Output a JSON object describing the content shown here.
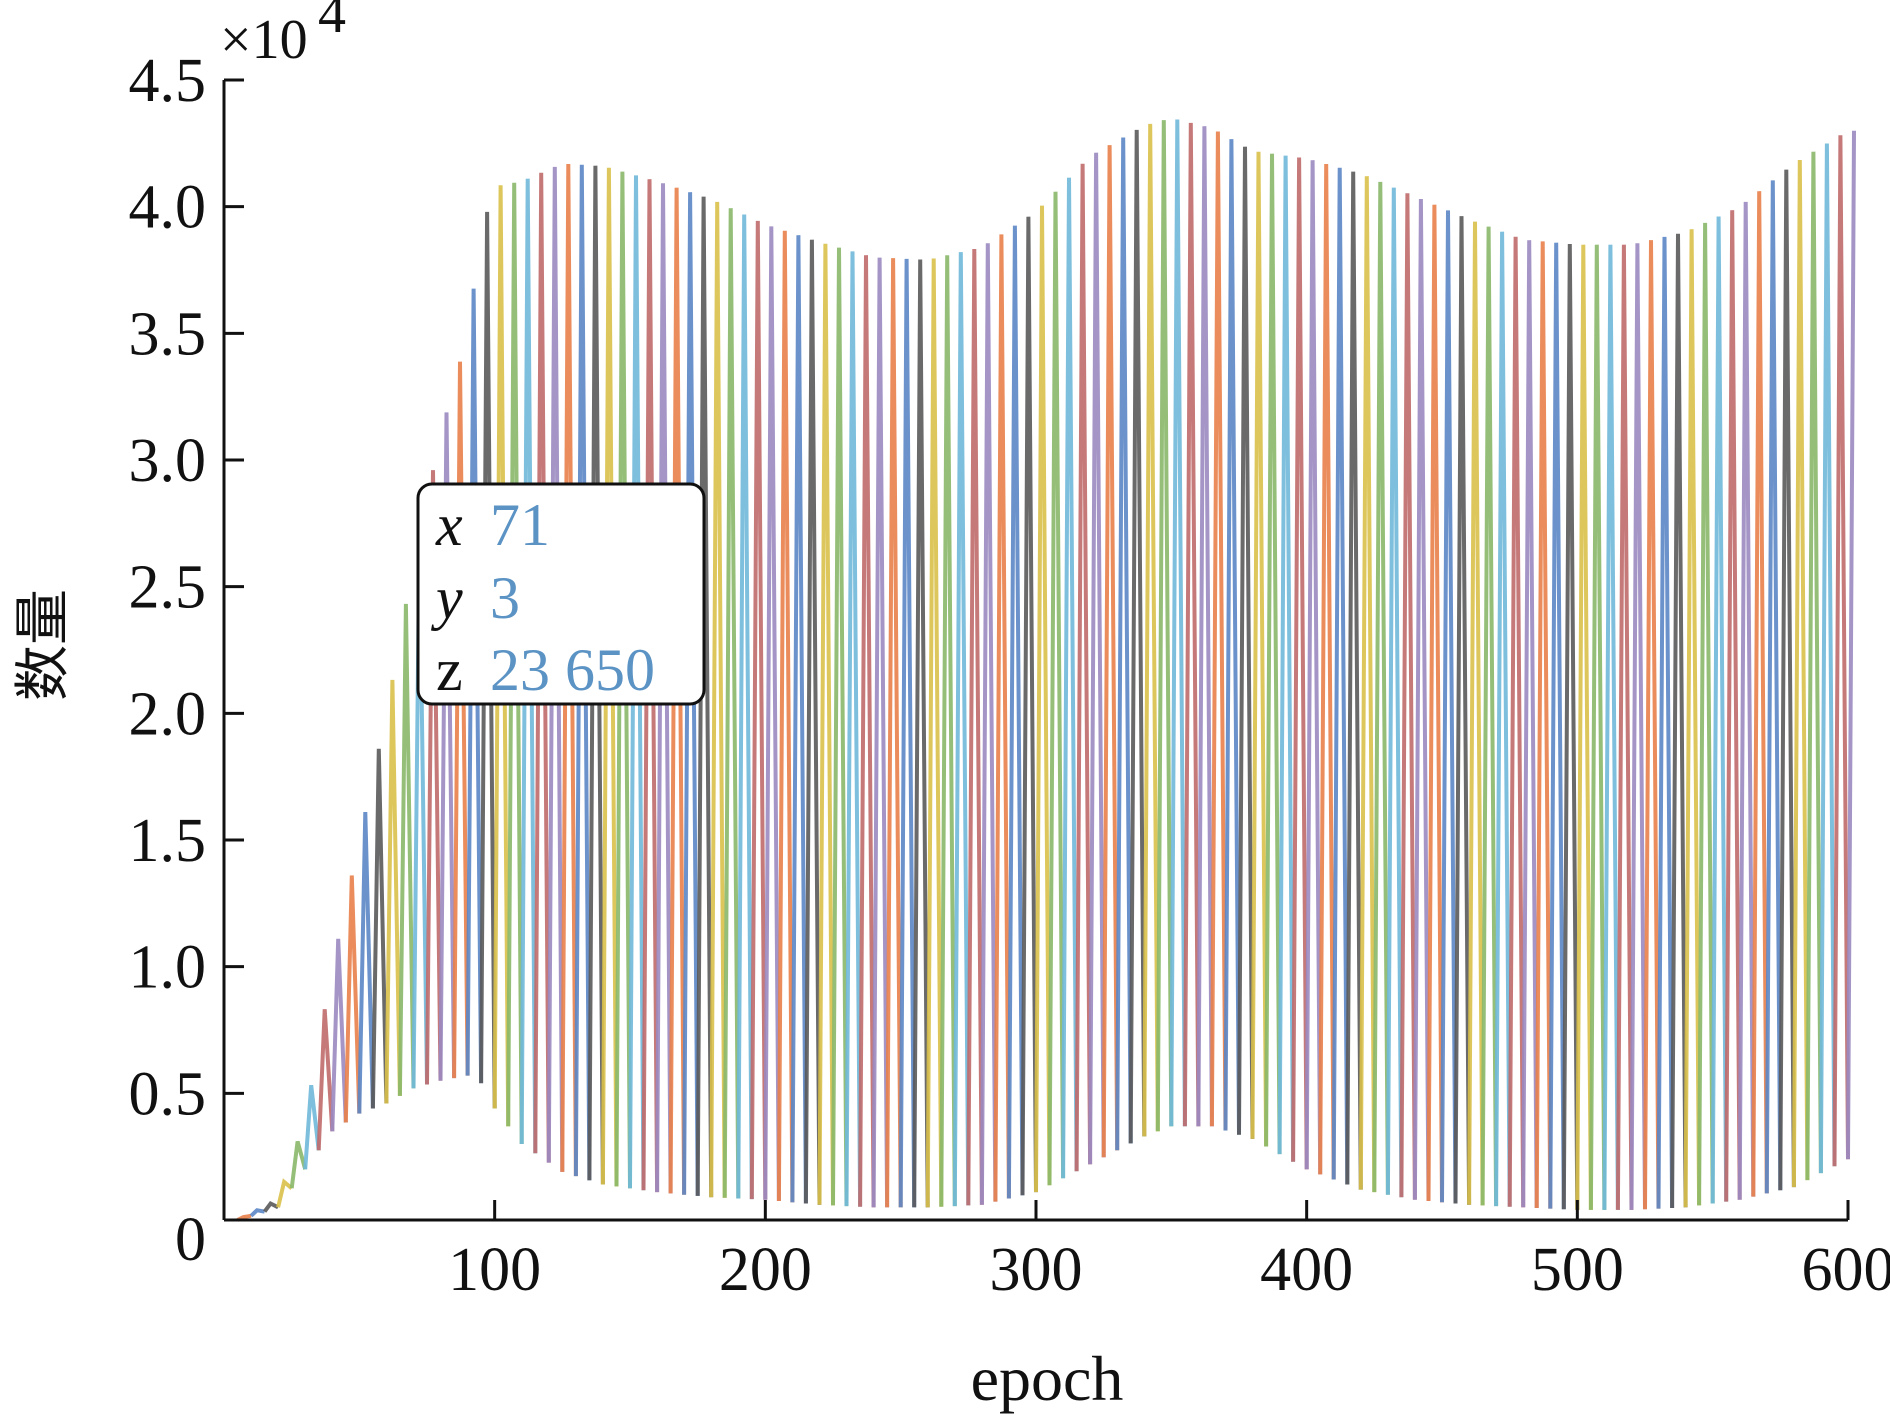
{
  "chart_data": {
    "type": "line",
    "xlabel": "epoch",
    "ylabel": "数量",
    "y_exponent_label": "×10",
    "y_exponent_power": "4",
    "xlim": [
      0,
      600
    ],
    "ylim": [
      0,
      45000
    ],
    "x_ticks": [
      100,
      200,
      300,
      400,
      500,
      600
    ],
    "x_tick_labels": [
      "100",
      "200",
      "300",
      "400",
      "500",
      "600"
    ],
    "y_ticks": [
      0,
      5000,
      10000,
      15000,
      20000,
      25000,
      30000,
      35000,
      40000,
      45000
    ],
    "y_tick_labels": [
      "0",
      "0.5",
      "1.0",
      "1.5",
      "2.0",
      "2.5",
      "3.0",
      "3.5",
      "4.0",
      "4.5"
    ],
    "grid": false,
    "series_style": "many overlapping colored lines oscillating between lower and upper envelope",
    "series_colors": [
      "#e8804a",
      "#5b86c5",
      "#5a5a5a",
      "#d9c14a",
      "#8ab86a",
      "#6fb8d8",
      "#c06a6a",
      "#9a8ac0"
    ],
    "upper_envelope": {
      "x": [
        5,
        20,
        30,
        40,
        50,
        60,
        70,
        80,
        90,
        95,
        100,
        110,
        125,
        140,
        160,
        180,
        200,
        220,
        240,
        260,
        280,
        300,
        320,
        340,
        350,
        365,
        380,
        400,
        420,
        440,
        460,
        480,
        500,
        520,
        540,
        560,
        580,
        600
      ],
      "y": [
        0,
        800,
        4000,
        10000,
        15000,
        20000,
        26000,
        31000,
        35000,
        39000,
        40800,
        41000,
        41700,
        41600,
        41000,
        40300,
        39300,
        38600,
        38000,
        37900,
        38400,
        39800,
        42000,
        43200,
        43500,
        43100,
        42200,
        41900,
        41300,
        40400,
        39500,
        38700,
        38500,
        38500,
        39000,
        40000,
        41700,
        43000
      ]
    },
    "lower_envelope": {
      "x": [
        5,
        20,
        30,
        40,
        50,
        60,
        70,
        80,
        90,
        95,
        100,
        110,
        125,
        140,
        160,
        180,
        200,
        220,
        240,
        260,
        280,
        300,
        320,
        340,
        350,
        365,
        380,
        400,
        420,
        440,
        460,
        480,
        500,
        520,
        540,
        560,
        580,
        600
      ],
      "y": [
        0,
        500,
        2000,
        3500,
        4200,
        4600,
        5200,
        5500,
        5700,
        5400,
        4400,
        3000,
        1900,
        1400,
        1100,
        900,
        800,
        600,
        500,
        500,
        600,
        1100,
        2200,
        3300,
        3700,
        3700,
        3200,
        2000,
        1200,
        800,
        600,
        500,
        400,
        400,
        500,
        800,
        1300,
        2400
      ]
    },
    "annotation": {
      "anchor_x": 71,
      "anchor_y": 23650,
      "x_key": "x",
      "x_value": "71",
      "y_key": "y",
      "y_value": "3",
      "z_key": "z",
      "z_value": "23 650"
    }
  }
}
